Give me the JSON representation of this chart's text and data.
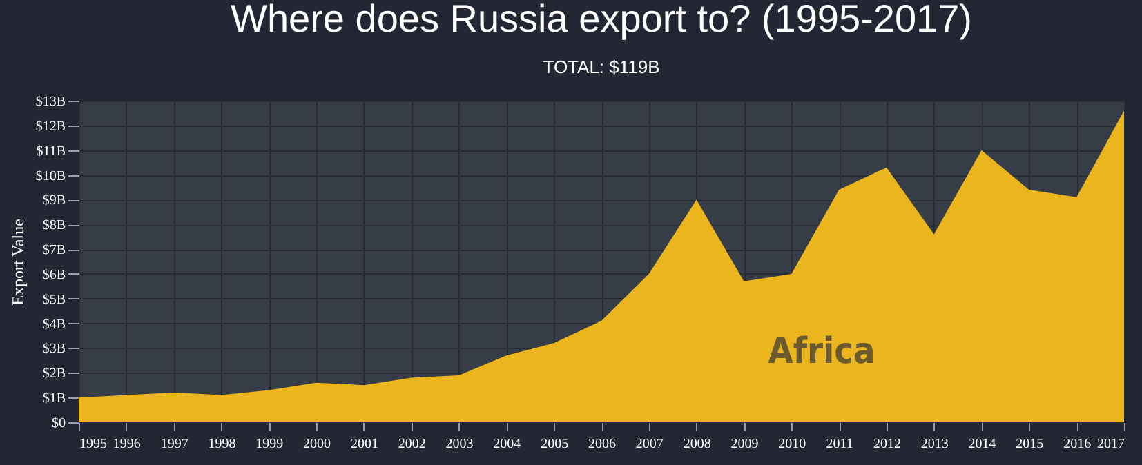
{
  "chart_data": {
    "type": "area",
    "title": "Where does Russia export to? (1995-2017)",
    "subtitle": "TOTAL: $119B",
    "ylabel": "Export Value",
    "x": [
      1995,
      1996,
      1997,
      1998,
      1999,
      2000,
      2001,
      2002,
      2003,
      2004,
      2005,
      2006,
      2007,
      2008,
      2009,
      2010,
      2011,
      2012,
      2013,
      2014,
      2015,
      2016,
      2017
    ],
    "series": [
      {
        "name": "Africa",
        "color": "#ebb51e",
        "values": [
          1.0,
          1.1,
          1.2,
          1.1,
          1.3,
          1.6,
          1.5,
          1.8,
          1.9,
          2.7,
          3.2,
          4.1,
          6.0,
          9.0,
          5.7,
          6.0,
          9.4,
          10.3,
          7.6,
          11.0,
          9.4,
          9.1,
          12.6
        ]
      }
    ],
    "xlim": [
      1995,
      2017
    ],
    "xticks": [
      1995,
      1996,
      1997,
      1998,
      1999,
      2000,
      2001,
      2002,
      2003,
      2004,
      2005,
      2006,
      2007,
      2008,
      2009,
      2010,
      2011,
      2012,
      2013,
      2014,
      2015,
      2016,
      2017
    ],
    "ylim": [
      0,
      13
    ],
    "yticks": [
      {
        "value": 0,
        "label": "$0"
      },
      {
        "value": 1,
        "label": "$1B"
      },
      {
        "value": 2,
        "label": "$2B"
      },
      {
        "value": 3,
        "label": "$3B"
      },
      {
        "value": 4,
        "label": "$4B"
      },
      {
        "value": 5,
        "label": "$5B"
      },
      {
        "value": 6,
        "label": "$6B"
      },
      {
        "value": 7,
        "label": "$7B"
      },
      {
        "value": 8,
        "label": "$8B"
      },
      {
        "value": 9,
        "label": "$9B"
      },
      {
        "value": 10,
        "label": "$10B"
      },
      {
        "value": 11,
        "label": "$11B"
      },
      {
        "value": 12,
        "label": "$12B"
      },
      {
        "value": 13,
        "label": "$13B"
      }
    ],
    "grid": true
  }
}
